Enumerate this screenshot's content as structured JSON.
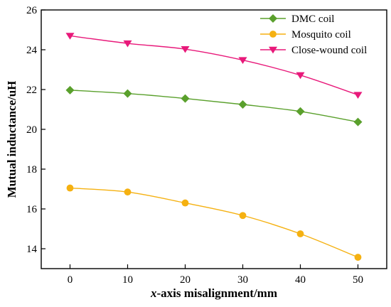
{
  "chart_data": {
    "type": "line",
    "xlabel_italic": "x",
    "xlabel_rest": "-axis misalignment/mm",
    "ylabel": "Mutual inductance/uH",
    "x": [
      0,
      10,
      20,
      30,
      40,
      50
    ],
    "xlim": [
      -5,
      55
    ],
    "ylim": [
      13,
      26
    ],
    "xticks": [
      0,
      10,
      20,
      30,
      40,
      50
    ],
    "yticks": [
      14,
      16,
      18,
      20,
      22,
      24,
      26
    ],
    "legend_position": "top-right",
    "series": [
      {
        "name": "DMC coil",
        "color": "#5aa02c",
        "marker": "diamond",
        "values": [
          21.97,
          21.8,
          21.55,
          21.25,
          20.9,
          20.37
        ]
      },
      {
        "name": "Mosquito coil",
        "color": "#f5b111",
        "marker": "circle",
        "values": [
          17.05,
          16.85,
          16.3,
          15.67,
          14.75,
          13.57
        ]
      },
      {
        "name": "Close-wound coil",
        "color": "#e8197a",
        "marker": "triangle-down",
        "values": [
          24.7,
          24.32,
          24.03,
          23.48,
          22.72,
          21.73
        ]
      }
    ]
  }
}
